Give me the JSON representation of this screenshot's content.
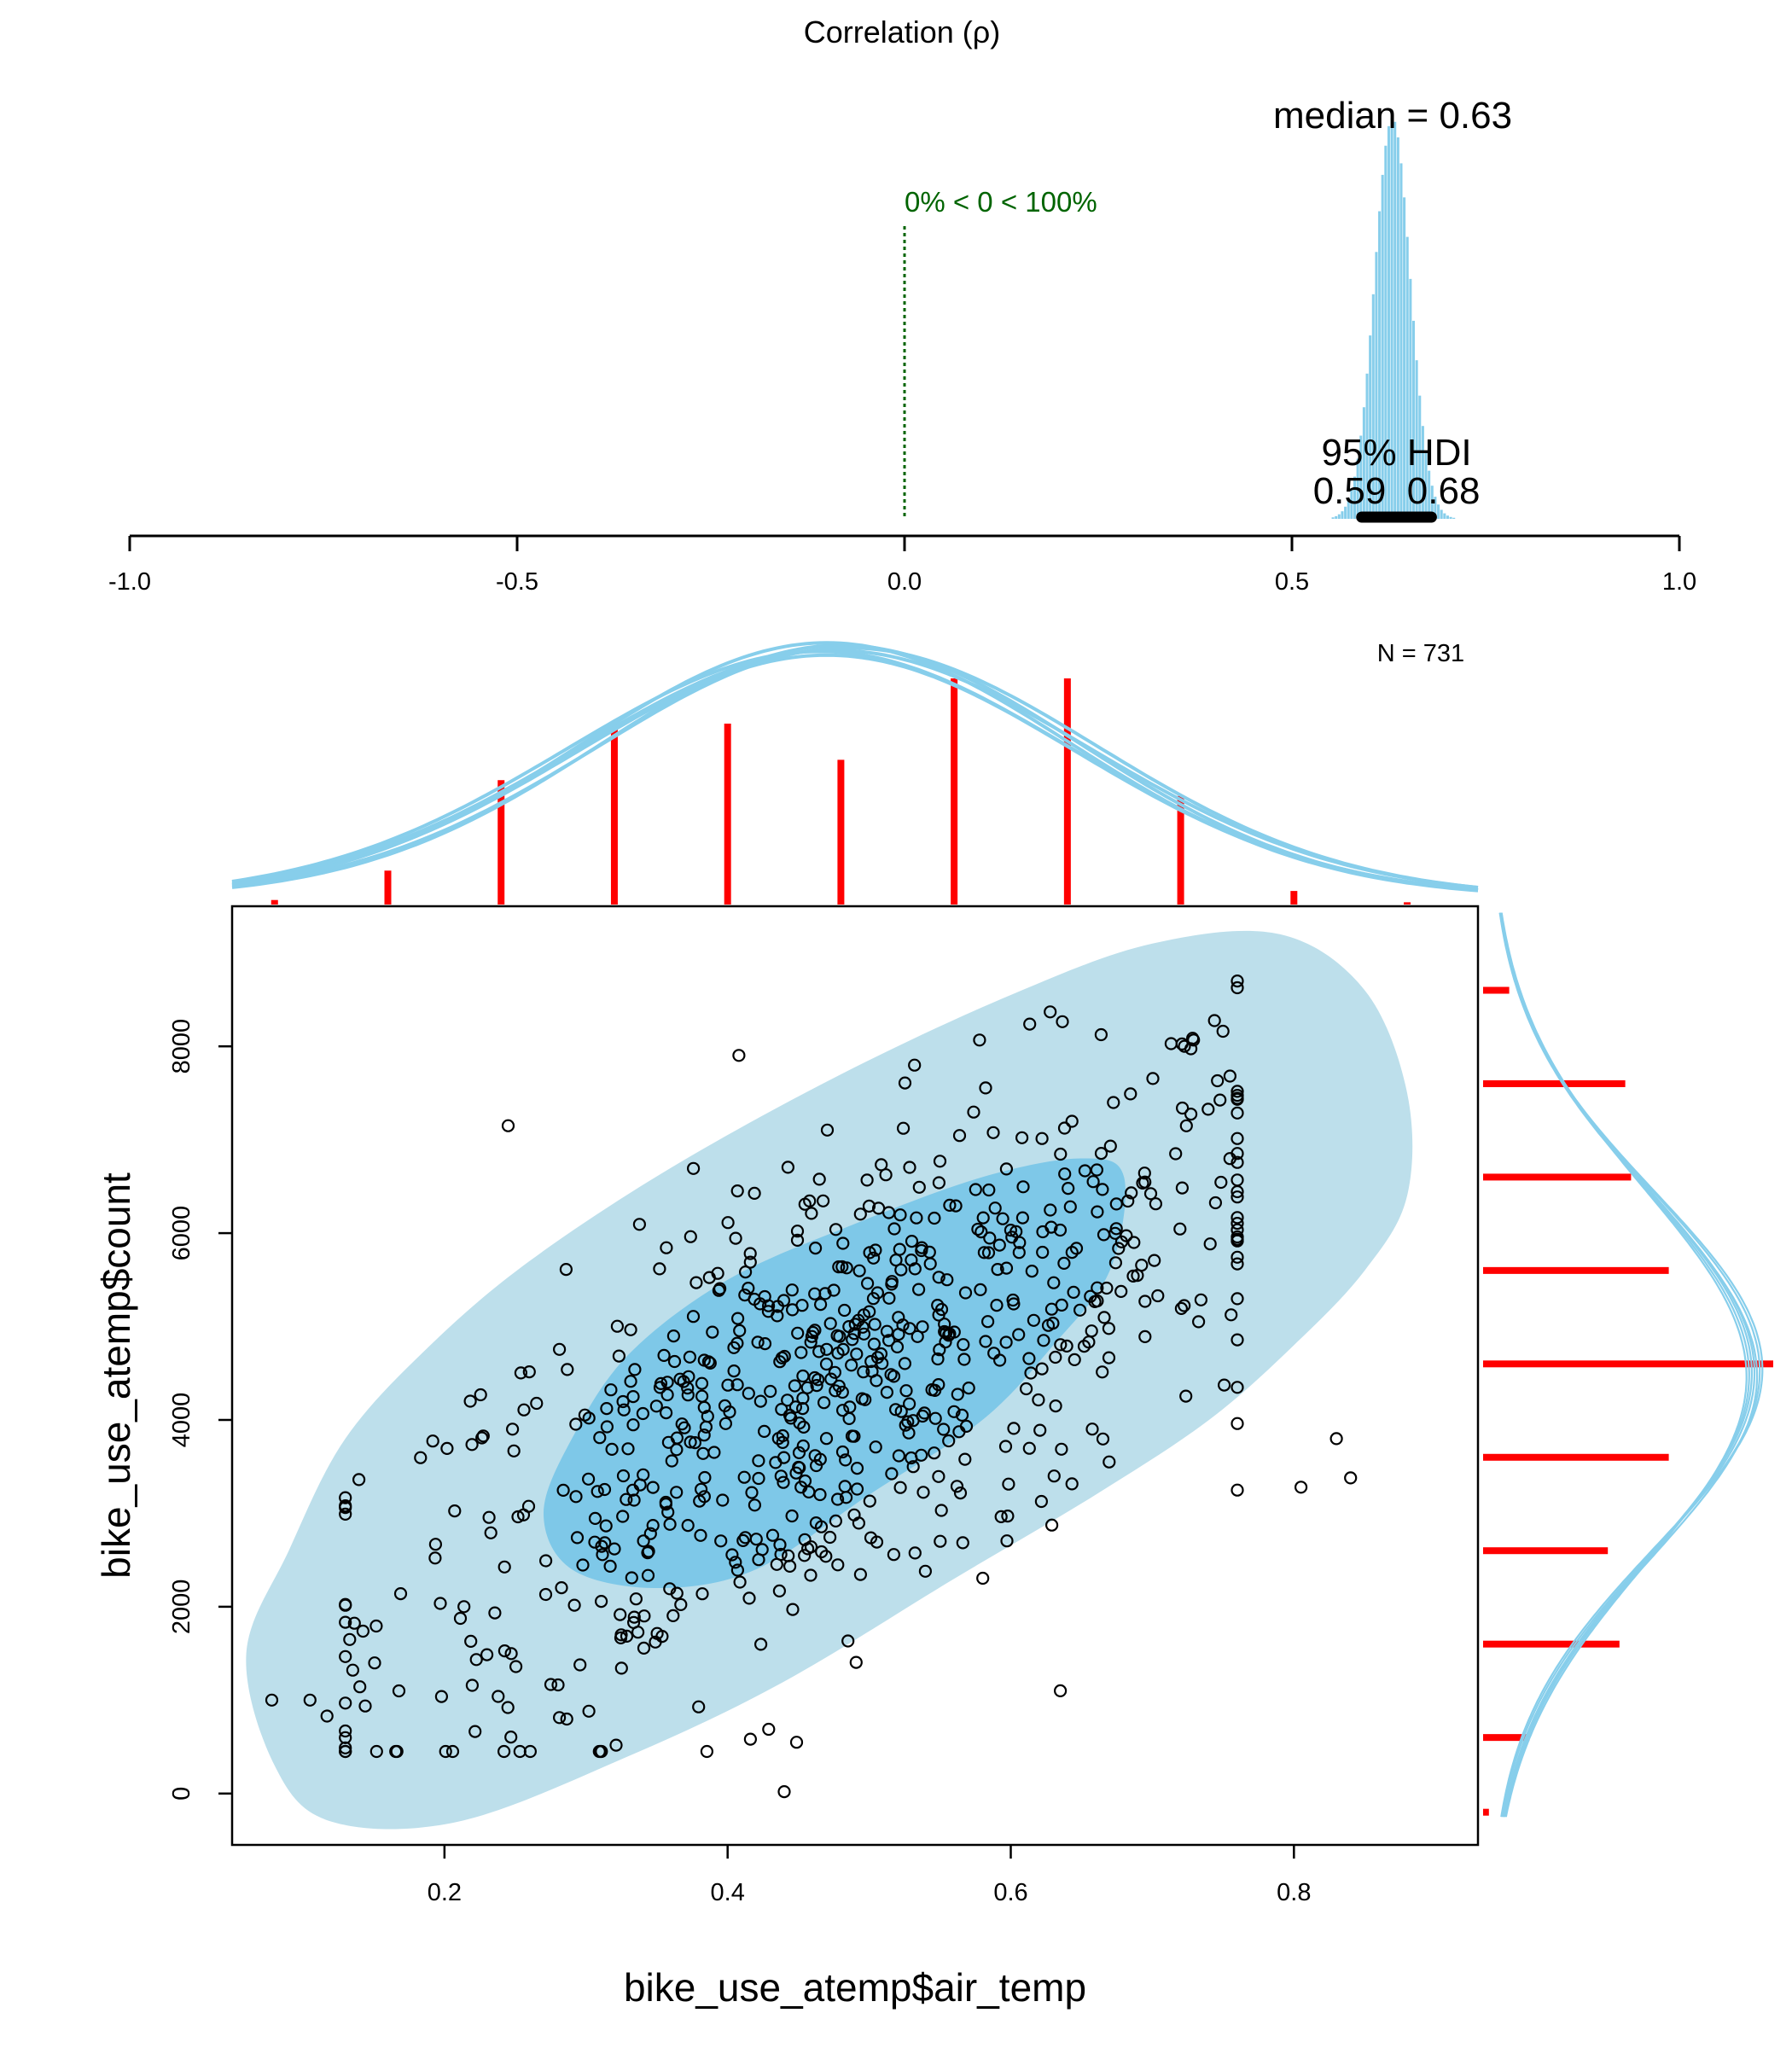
{
  "colors": {
    "posterior": "#87CEEB",
    "ellipse_outer": "#BDDFEB",
    "ellipse_inner": "#7EC8E8",
    "hdi_bar": "#000000",
    "zero_line": "#006400",
    "marginal_bars": "#FF0000",
    "points": "#000000"
  },
  "chart_data": [
    {
      "type": "histogram",
      "title": "Correlation (ρ)",
      "xlim": [
        -1.0,
        1.0
      ],
      "x_ticks": [
        "-1.0",
        "-0.5",
        "0.0",
        "0.5",
        "1.0"
      ],
      "x_tick_values": [
        -1.0,
        -0.5,
        0.0,
        0.5,
        1.0
      ],
      "median_label": "median = 0.63",
      "median": 0.63,
      "zero_label": "0% < 0 < 100%",
      "hdi_title": "95% HDI",
      "hdi_values_label": "0.59  0.68",
      "hdi": [
        0.59,
        0.68
      ],
      "n_label": "N = 731"
    },
    {
      "type": "scatter",
      "xlabel": "bike_use_atemp$air_temp",
      "ylabel": "bike_use_atemp$count",
      "xlim": [
        0.05,
        0.93
      ],
      "ylim": [
        -550,
        9500
      ],
      "x_ticks": [
        "0.2",
        "0.4",
        "0.6",
        "0.8"
      ],
      "x_tick_values": [
        0.2,
        0.4,
        0.6,
        0.8
      ],
      "y_ticks": [
        "0",
        "2000",
        "4000",
        "6000",
        "8000"
      ],
      "y_tick_values": [
        0,
        2000,
        4000,
        6000,
        8000
      ],
      "ellipse_outer": [
        [
          0.06,
          1500
        ],
        [
          0.09,
          2600
        ],
        [
          0.13,
          3800
        ],
        [
          0.19,
          4800
        ],
        [
          0.26,
          5700
        ],
        [
          0.36,
          6700
        ],
        [
          0.48,
          7700
        ],
        [
          0.6,
          8550
        ],
        [
          0.7,
          9100
        ],
        [
          0.79,
          9200
        ],
        [
          0.85,
          8600
        ],
        [
          0.88,
          7500
        ],
        [
          0.88,
          6400
        ],
        [
          0.85,
          5600
        ],
        [
          0.8,
          4800
        ],
        [
          0.74,
          4000
        ],
        [
          0.66,
          3200
        ],
        [
          0.56,
          2300
        ],
        [
          0.44,
          1200
        ],
        [
          0.33,
          400
        ],
        [
          0.21,
          -300
        ],
        [
          0.12,
          -300
        ],
        [
          0.08,
          300
        ]
      ],
      "ellipse_inner": [
        [
          0.27,
          3000
        ],
        [
          0.29,
          3800
        ],
        [
          0.33,
          4700
        ],
        [
          0.4,
          5500
        ],
        [
          0.49,
          6100
        ],
        [
          0.58,
          6600
        ],
        [
          0.65,
          6800
        ],
        [
          0.68,
          6600
        ],
        [
          0.67,
          5600
        ],
        [
          0.63,
          4800
        ],
        [
          0.58,
          4000
        ],
        [
          0.5,
          3200
        ],
        [
          0.42,
          2400
        ],
        [
          0.35,
          2200
        ],
        [
          0.29,
          2400
        ]
      ],
      "marginal_x": {
        "bin_centers": [
          0.08,
          0.16,
          0.24,
          0.32,
          0.4,
          0.48,
          0.56,
          0.64,
          0.72,
          0.8,
          0.88
        ],
        "heights": [
          0.02,
          0.15,
          0.55,
          0.8,
          0.8,
          0.64,
          1.0,
          1.0,
          0.48,
          0.06,
          0.01
        ]
      },
      "marginal_y": {
        "bin_centers": [
          -200,
          600,
          1600,
          2600,
          3600,
          4600,
          5600,
          6600,
          7600,
          8600
        ],
        "lengths": [
          0.02,
          0.16,
          0.47,
          0.43,
          0.64,
          1.0,
          0.64,
          0.51,
          0.49,
          0.09
        ]
      },
      "outlier_points": [
        [
          0.245,
          7150
        ],
        [
          0.635,
          1100
        ],
        [
          0.44,
          20
        ],
        [
          0.84,
          3380
        ],
        [
          0.805,
          3280
        ],
        [
          0.83,
          3800
        ],
        [
          0.078,
          1000
        ],
        [
          0.105,
          1000
        ],
        [
          0.117,
          830
        ]
      ],
      "cloud": {
        "n": 722,
        "slope": 7500,
        "intercept": 750,
        "noise_sd": 1250,
        "x_center": 0.48,
        "x_sd": 0.165
      }
    }
  ]
}
